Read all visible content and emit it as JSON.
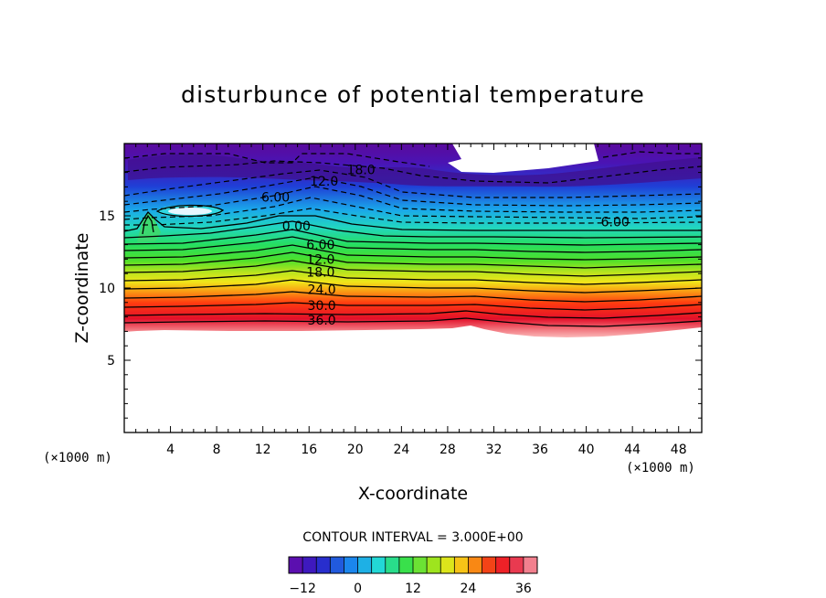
{
  "chart_data": {
    "type": "heatmap",
    "title": "disturbunce of potential temperature",
    "xlabel": "X-coordinate",
    "ylabel": "Z-coordinate",
    "x_unit_label": "(×1000 m)",
    "y_unit_label": "(×1000 m)",
    "xlim": [
      0,
      50
    ],
    "ylim": [
      0,
      20
    ],
    "x_ticks": [
      4,
      8,
      12,
      16,
      20,
      24,
      28,
      32,
      36,
      40,
      44,
      48
    ],
    "y_ticks": [
      5,
      10,
      15
    ],
    "contour_interval_text": "CONTOUR INTERVAL = 3.000E+00",
    "contour_interval": 3.0,
    "colorbar": {
      "min": -15,
      "max": 39,
      "tick_values": [
        -12,
        0,
        12,
        24,
        36
      ],
      "tick_labels": [
        "−12",
        "0",
        "12",
        "24",
        "36"
      ]
    },
    "contour_labels": [
      {
        "text": "18.0",
        "x": 20.5,
        "z": 18.2,
        "value": -18
      },
      {
        "text": "12.0",
        "x": 17.3,
        "z": 17.4,
        "value": -12
      },
      {
        "text": "6.00",
        "x": 13.1,
        "z": 16.3,
        "value": -6
      },
      {
        "text": "6.00",
        "x": 42.5,
        "z": 14.6,
        "value": -6
      },
      {
        "text": "0.00",
        "x": 14.9,
        "z": 14.3,
        "value": 0
      },
      {
        "text": "6.00",
        "x": 17.0,
        "z": 13.0,
        "value": 6
      },
      {
        "text": "12.0",
        "x": 17.0,
        "z": 12.0,
        "value": 12
      },
      {
        "text": "18.0",
        "x": 17.0,
        "z": 11.1,
        "value": 18
      },
      {
        "text": "24.0",
        "x": 17.1,
        "z": 9.9,
        "value": 24
      },
      {
        "text": "30.0",
        "x": 17.1,
        "z": 8.8,
        "value": 30
      },
      {
        "text": "36.0",
        "x": 17.1,
        "z": 7.8,
        "value": 36
      }
    ]
  }
}
